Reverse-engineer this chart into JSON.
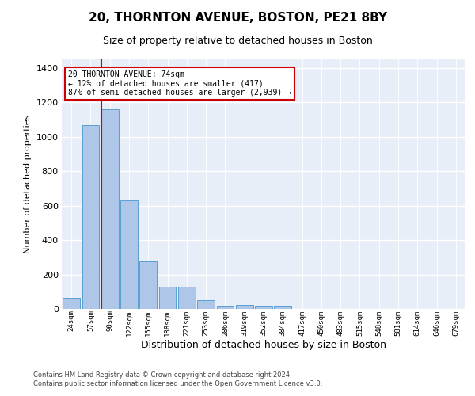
{
  "title1": "20, THORNTON AVENUE, BOSTON, PE21 8BY",
  "title2": "Size of property relative to detached houses in Boston",
  "xlabel": "Distribution of detached houses by size in Boston",
  "ylabel": "Number of detached properties",
  "footer1": "Contains HM Land Registry data © Crown copyright and database right 2024.",
  "footer2": "Contains public sector information licensed under the Open Government Licence v3.0.",
  "categories": [
    "24sqm",
    "57sqm",
    "90sqm",
    "122sqm",
    "155sqm",
    "188sqm",
    "221sqm",
    "253sqm",
    "286sqm",
    "319sqm",
    "352sqm",
    "384sqm",
    "417sqm",
    "450sqm",
    "483sqm",
    "515sqm",
    "548sqm",
    "581sqm",
    "614sqm",
    "646sqm",
    "679sqm"
  ],
  "values": [
    65,
    1070,
    1160,
    630,
    275,
    130,
    130,
    50,
    20,
    25,
    20,
    20,
    0,
    0,
    0,
    0,
    0,
    0,
    0,
    0,
    0
  ],
  "bar_color": "#aec6e8",
  "bar_edge_color": "#5a9fd4",
  "bg_color": "#e8eef8",
  "grid_color": "#ffffff",
  "vline_color": "#cc0000",
  "annotation_line1": "20 THORNTON AVENUE: 74sqm",
  "annotation_line2": "← 12% of detached houses are smaller (417)",
  "annotation_line3": "87% of semi-detached houses are larger (2,939) →",
  "annotation_box_edgecolor": "#cc0000",
  "ylim": [
    0,
    1450
  ],
  "yticks": [
    0,
    200,
    400,
    600,
    800,
    1000,
    1200,
    1400
  ],
  "title1_fontsize": 11,
  "title2_fontsize": 9,
  "xlabel_fontsize": 9,
  "ylabel_fontsize": 8,
  "tick_fontsize": 8,
  "footer_fontsize": 6
}
